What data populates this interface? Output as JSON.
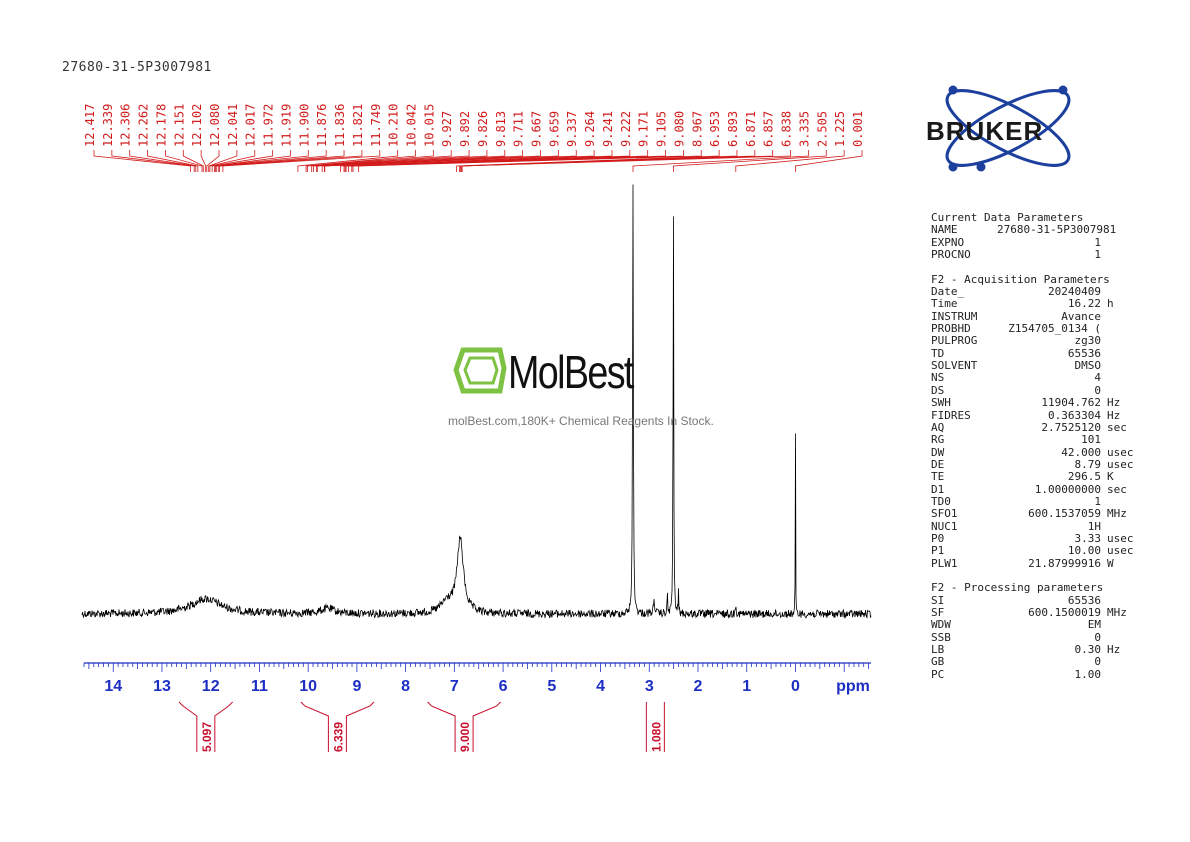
{
  "sample_name": "27680-31-5P3007981",
  "brand": {
    "bruker_text": "BRUKER",
    "molbest_text": "MolBest",
    "molbest_tagline": "molBest.com,180K+ Chemical Reagents In Stock."
  },
  "colors": {
    "peak_labels": "#d21b1b",
    "axis": "#1c2fc4",
    "trace": "#000000",
    "integrals": "#c8102e",
    "bruker_blue": "#1d3f9e",
    "molbest_green": "#7dc242"
  },
  "chart_data": {
    "type": "line",
    "x_axis": {
      "label": "ppm",
      "reversed": true,
      "range": [
        14.6,
        -1.55
      ],
      "major_ticks": [
        14,
        13,
        12,
        11,
        10,
        9,
        8,
        7,
        6,
        5,
        4,
        3,
        2,
        1,
        0
      ]
    },
    "peak_labels": [
      "12.417",
      "12.339",
      "12.306",
      "12.262",
      "12.178",
      "12.151",
      "12.102",
      "12.080",
      "12.041",
      "12.017",
      "11.972",
      "11.919",
      "11.900",
      "11.876",
      "11.836",
      "11.821",
      "11.749",
      "10.210",
      "10.042",
      "10.015",
      "9.927",
      "9.892",
      "9.826",
      "9.813",
      "9.711",
      "9.667",
      "9.659",
      "9.337",
      "9.264",
      "9.241",
      "9.222",
      "9.171",
      "9.105",
      "9.080",
      "8.967",
      "6.953",
      "6.893",
      "6.871",
      "6.857",
      "6.838",
      "3.335",
      "2.505",
      "1.225",
      "0.001"
    ],
    "integrals": [
      {
        "from": 12.65,
        "to": 11.55,
        "value": "5.097"
      },
      {
        "from": 10.15,
        "to": 8.65,
        "value": "6.339"
      },
      {
        "from": 7.55,
        "to": 6.05,
        "value": "9.000"
      },
      {
        "from": 3.0,
        "to": 2.75,
        "value": "1.080"
      }
    ],
    "baseline_regions": [
      {
        "center": 12.1,
        "width": 0.75,
        "height": 0.035
      },
      {
        "center": 9.6,
        "width": 0.35,
        "height": 0.012
      },
      {
        "center": 6.88,
        "width": 0.16,
        "height": 0.17
      },
      {
        "center": 7.15,
        "width": 0.3,
        "height": 0.025
      },
      {
        "center": 3.335,
        "width": 0.018,
        "height": 1.0
      },
      {
        "center": 2.505,
        "width": 0.014,
        "height": 1.0
      },
      {
        "center": 2.9,
        "width": 0.035,
        "height": 0.03
      },
      {
        "center": 2.63,
        "width": 0.01,
        "height": 0.06
      },
      {
        "center": 2.4,
        "width": 0.012,
        "height": 0.05
      },
      {
        "center": 1.225,
        "width": 0.012,
        "height": 0.04
      },
      {
        "center": 0.001,
        "width": 0.006,
        "height": 0.54
      }
    ]
  },
  "parameters": {
    "current": {
      "header": "Current Data Parameters",
      "rows": [
        {
          "k": "NAME",
          "v": "27680-31-5P3007981",
          "u": ""
        },
        {
          "k": "EXPNO",
          "v": "1",
          "u": ""
        },
        {
          "k": "PROCNO",
          "v": "1",
          "u": ""
        }
      ]
    },
    "acquisition": {
      "header": "F2 - Acquisition Parameters",
      "rows": [
        {
          "k": "Date_",
          "v": "20240409",
          "u": ""
        },
        {
          "k": "Time",
          "v": "16.22",
          "u": "h"
        },
        {
          "k": "INSTRUM",
          "v": "Avance",
          "u": ""
        },
        {
          "k": "PROBHD",
          "v": "Z154705_0134 (",
          "u": ""
        },
        {
          "k": "PULPROG",
          "v": "zg30",
          "u": ""
        },
        {
          "k": "TD",
          "v": "65536",
          "u": ""
        },
        {
          "k": "SOLVENT",
          "v": "DMSO",
          "u": ""
        },
        {
          "k": "NS",
          "v": "4",
          "u": ""
        },
        {
          "k": "DS",
          "v": "0",
          "u": ""
        },
        {
          "k": "SWH",
          "v": "11904.762",
          "u": "Hz"
        },
        {
          "k": "FIDRES",
          "v": "0.363304",
          "u": "Hz"
        },
        {
          "k": "AQ",
          "v": "2.7525120",
          "u": "sec"
        },
        {
          "k": "RG",
          "v": "101",
          "u": ""
        },
        {
          "k": "DW",
          "v": "42.000",
          "u": "usec"
        },
        {
          "k": "DE",
          "v": "8.79",
          "u": "usec"
        },
        {
          "k": "TE",
          "v": "296.5",
          "u": "K"
        },
        {
          "k": "D1",
          "v": "1.00000000",
          "u": "sec"
        },
        {
          "k": "TD0",
          "v": "1",
          "u": ""
        },
        {
          "k": "SFO1",
          "v": "600.1537059",
          "u": "MHz"
        },
        {
          "k": "NUC1",
          "v": "1H",
          "u": ""
        },
        {
          "k": "P0",
          "v": "3.33",
          "u": "usec"
        },
        {
          "k": "P1",
          "v": "10.00",
          "u": "usec"
        },
        {
          "k": "PLW1",
          "v": "21.87999916",
          "u": "W"
        }
      ]
    },
    "processing": {
      "header": "F2 - Processing parameters",
      "rows": [
        {
          "k": "SI",
          "v": "65536",
          "u": ""
        },
        {
          "k": "SF",
          "v": "600.1500019",
          "u": "MHz"
        },
        {
          "k": "WDW",
          "v": "EM",
          "u": ""
        },
        {
          "k": "SSB",
          "v": "0",
          "u": ""
        },
        {
          "k": "LB",
          "v": "0.30",
          "u": "Hz"
        },
        {
          "k": "GB",
          "v": "0",
          "u": ""
        },
        {
          "k": "PC",
          "v": "1.00",
          "u": ""
        }
      ]
    }
  }
}
